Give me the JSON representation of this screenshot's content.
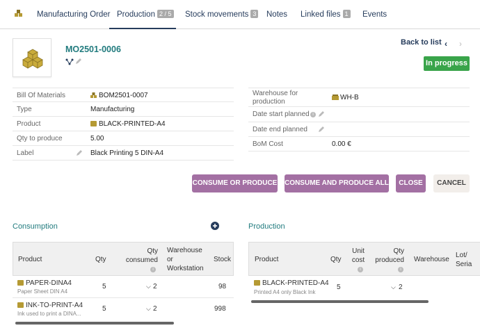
{
  "tabs": [
    {
      "label": "Manufacturing Order",
      "badge": ""
    },
    {
      "label": "Production",
      "badge": "2 / 5"
    },
    {
      "label": "Stock movements",
      "badge": "3"
    },
    {
      "label": "Notes",
      "badge": ""
    },
    {
      "label": "Linked files",
      "badge": "1"
    },
    {
      "label": "Events",
      "badge": ""
    }
  ],
  "header": {
    "ref": "MO2501-0006",
    "back_label": "Back to list",
    "status": "In progress"
  },
  "left_fields": [
    {
      "label": "Bill Of Materials",
      "value": "BOM2501-0007"
    },
    {
      "label": "Type",
      "value": "Manufacturing"
    },
    {
      "label": "Product",
      "value": "BLACK-PRINTED-A4"
    },
    {
      "label": "Qty to produce",
      "value": "5.00"
    },
    {
      "label": "Label",
      "value": "Black Printing 5 DIN-A4"
    }
  ],
  "right_fields": [
    {
      "label": "Warehouse for production",
      "value": "WH-B"
    },
    {
      "label": "Date start planned",
      "value": ""
    },
    {
      "label": "Date end planned",
      "value": ""
    },
    {
      "label": "BoM Cost",
      "value": "0.00 €"
    }
  ],
  "actions": {
    "consume_or_produce": "CONSUME OR PRODUCE",
    "consume_and_produce_all": "CONSUME AND PRODUCE ALL",
    "close": "CLOSE",
    "cancel": "CANCEL"
  },
  "consumption": {
    "title": "Consumption",
    "headers": [
      "Product",
      "Qty",
      "Qty consumed",
      "Warehouse or Workstation",
      "Stock"
    ],
    "rows": [
      {
        "product": "PAPER-DINA4",
        "desc": "Paper Sheet DIN A4",
        "qty": "5",
        "consumed": "2",
        "stock": "98"
      },
      {
        "product": "INK-TO-PRINT-A4",
        "desc": "Ink used to print a DINA...",
        "qty": "5",
        "consumed": "2",
        "stock": "998"
      }
    ]
  },
  "production": {
    "title": "Production",
    "headers": [
      "Product",
      "Qty",
      "Unit cost",
      "Qty produced",
      "Warehouse",
      "Lot/ Seria"
    ],
    "rows": [
      {
        "product": "BLACK-PRINTED-A4",
        "desc": "Printed A4 only Black Ink",
        "qty": "5",
        "produced": "2"
      }
    ]
  }
}
